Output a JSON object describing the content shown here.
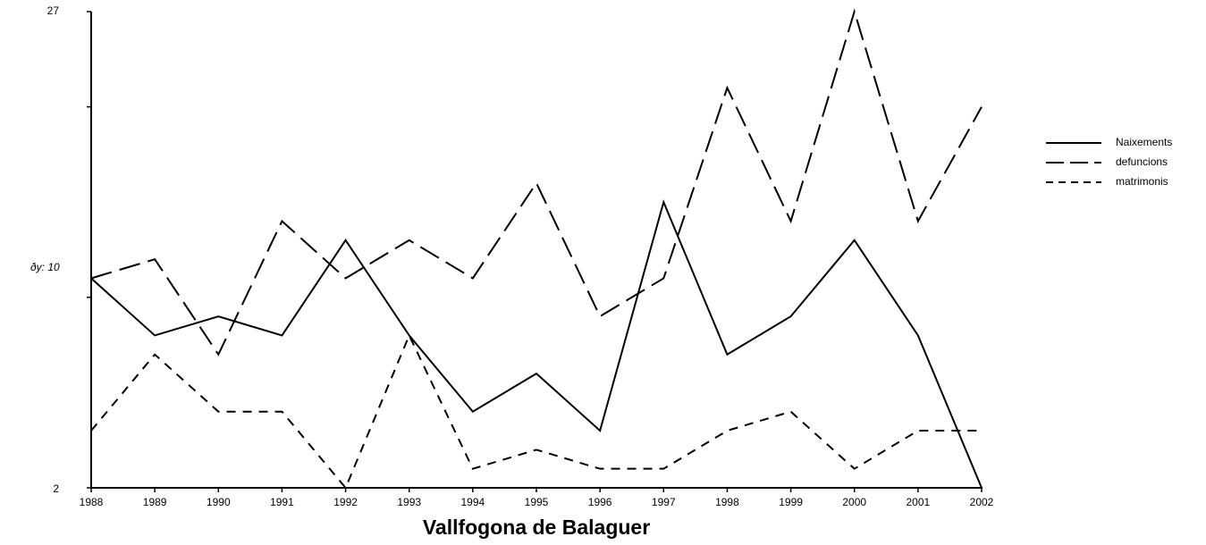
{
  "chart_data": {
    "type": "line",
    "title": "Vallfogona de Balaguer",
    "annotation": "ðy: 10",
    "categories": [
      "1988",
      "1989",
      "1990",
      "1991",
      "1992",
      "1993",
      "1994",
      "1995",
      "1996",
      "1997",
      "1998",
      "1999",
      "2000",
      "2001",
      "2002"
    ],
    "series": [
      {
        "name": "Naixements",
        "color": "#000000",
        "dash": "none",
        "values": [
          13,
          10,
          11,
          10,
          15,
          10,
          6,
          8,
          5,
          17,
          9,
          11,
          15,
          10,
          2
        ]
      },
      {
        "name": "defuncions",
        "color": "#000000",
        "dash": "24,9",
        "values": [
          13,
          14,
          9,
          16,
          13,
          15,
          13,
          18,
          11,
          13,
          23,
          16,
          27,
          16,
          22
        ]
      },
      {
        "name": "matrimonis",
        "color": "#000000",
        "dash": "10,8",
        "values": [
          5,
          9,
          6,
          6,
          2,
          10,
          3,
          4,
          3,
          3,
          5,
          6,
          3,
          5,
          5
        ]
      }
    ],
    "ylim": [
      2,
      27
    ],
    "yticks": [
      2,
      27
    ],
    "yminorticks": [
      12,
      22
    ],
    "grid": false,
    "legend": "right"
  }
}
